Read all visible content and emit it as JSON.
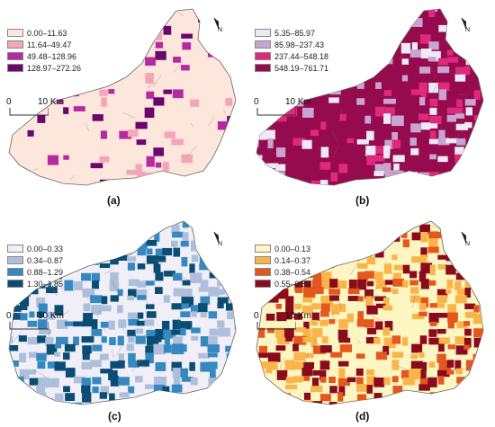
{
  "panels": [
    {
      "id": "a",
      "caption": "(a)",
      "legend": [
        {
          "label": "0.00–11.63",
          "color": "#fde6dc"
        },
        {
          "label": "11.64–49.47",
          "color": "#f3a6b8"
        },
        {
          "label": "49.48–128.96",
          "color": "#b7299e"
        },
        {
          "label": "128.97–272.26",
          "color": "#6c066f"
        }
      ],
      "base_color": "#fde6dc",
      "accent_colors": [
        "#f3a6b8",
        "#b7299e",
        "#6c066f"
      ]
    },
    {
      "id": "b",
      "caption": "(b)",
      "legend": [
        {
          "label": "5.35–85.97",
          "color": "#eeeaf4"
        },
        {
          "label": "85.98–237.43",
          "color": "#c8a4d0"
        },
        {
          "label": "237.44–548.18",
          "color": "#e0287c"
        },
        {
          "label": "548.19–761.71",
          "color": "#960a4e"
        }
      ],
      "base_color": "#960a4e",
      "accent_colors": [
        "#eeeaf4",
        "#c8a4d0",
        "#e0287c"
      ]
    },
    {
      "id": "c",
      "caption": "(c)",
      "legend": [
        {
          "label": "0.00–0.33",
          "color": "#f0eef7"
        },
        {
          "label": "0.34–0.87",
          "color": "#aebfdc"
        },
        {
          "label": "0.88–1.29",
          "color": "#3689c0"
        },
        {
          "label": "1.30–1.85",
          "color": "#0a4d74"
        }
      ],
      "base_color": "#f0eef7",
      "accent_colors": [
        "#aebfdc",
        "#3689c0",
        "#0a4d74"
      ]
    },
    {
      "id": "d",
      "caption": "(d)",
      "legend": [
        {
          "label": "0.00–0.13",
          "color": "#fdf5c2"
        },
        {
          "label": "0.14–0.37",
          "color": "#f9b54a"
        },
        {
          "label": "0.38–0.54",
          "color": "#e4571e"
        },
        {
          "label": "0.55–0.89",
          "color": "#8a0c1c"
        }
      ],
      "base_color": "#fdf5c2",
      "accent_colors": [
        "#f9b54a",
        "#e4571e",
        "#8a0c1c"
      ]
    }
  ],
  "scale_bar": {
    "left": "0",
    "right": "10 Km"
  },
  "north_arrow": {
    "label": "N"
  }
}
